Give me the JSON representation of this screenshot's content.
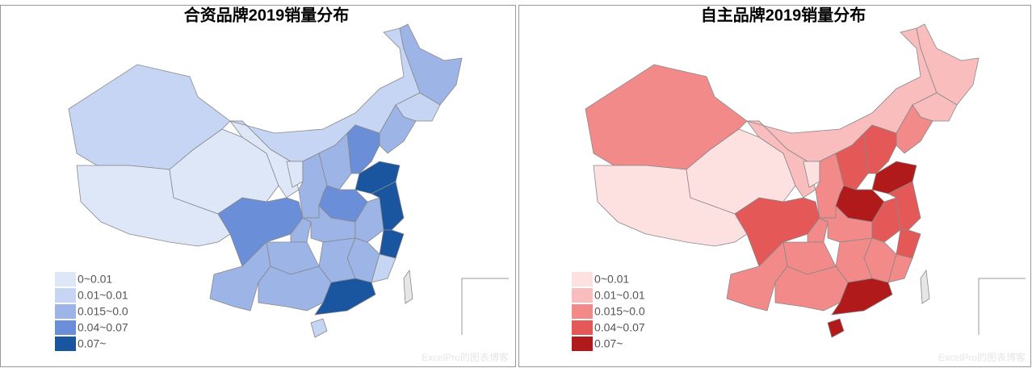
{
  "maps": [
    {
      "title": "合资品牌2019销量分布",
      "legend": [
        {
          "label": "0~0.01",
          "color": "#dde7f8"
        },
        {
          "label": "0.01~0.01",
          "color": "#c5d5f3"
        },
        {
          "label": "0.015~0.0",
          "color": "#9cb4e6"
        },
        {
          "label": "0.04~0.07",
          "color": "#6b8ed8"
        },
        {
          "label": "0.07~",
          "color": "#1a55a0"
        }
      ]
    },
    {
      "title": "自主品牌2019销量分布",
      "legend": [
        {
          "label": "0~0.01",
          "color": "#fde0e0"
        },
        {
          "label": "0.01~0.01",
          "color": "#f9bdbd"
        },
        {
          "label": "0.015~0.0",
          "color": "#f28a8a"
        },
        {
          "label": "0.04~0.07",
          "color": "#e45858"
        },
        {
          "label": "0.07~",
          "color": "#b01a1a"
        }
      ]
    }
  ],
  "watermark": "ExcelPro的图表博客"
}
